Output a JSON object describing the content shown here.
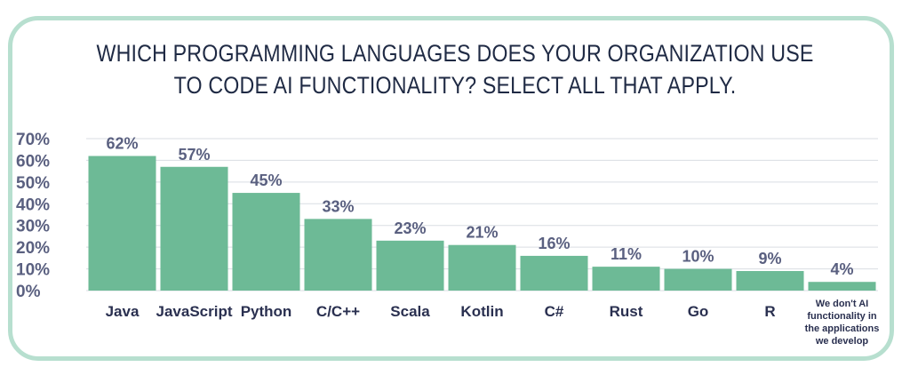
{
  "chart_data": {
    "type": "bar",
    "title": "WHICH PROGRAMMING LANGUAGES DOES YOUR ORGANIZATION USE TO CODE AI FUNCTIONALITY? SELECT ALL THAT APPLY.",
    "categories": [
      "Java",
      "JavaScript",
      "Python",
      "C/C++",
      "Scala",
      "Kotlin",
      "C#",
      "Rust",
      "Go",
      "R",
      "We don't AI functionality in the applications we develop"
    ],
    "values": [
      62,
      57,
      45,
      33,
      23,
      21,
      16,
      11,
      10,
      9,
      4
    ],
    "value_labels": [
      "62%",
      "57%",
      "45%",
      "33%",
      "23%",
      "21%",
      "16%",
      "11%",
      "10%",
      "9%",
      "4%"
    ],
    "yticks": [
      "0%",
      "10%",
      "20%",
      "30%",
      "40%",
      "50%",
      "60%",
      "70%"
    ],
    "ylim": [
      0,
      70
    ],
    "xlabel": "",
    "ylabel": "",
    "grid": true,
    "legend": "none",
    "bar_color": "#6dba96",
    "frame_color": "#b7dfcf"
  }
}
